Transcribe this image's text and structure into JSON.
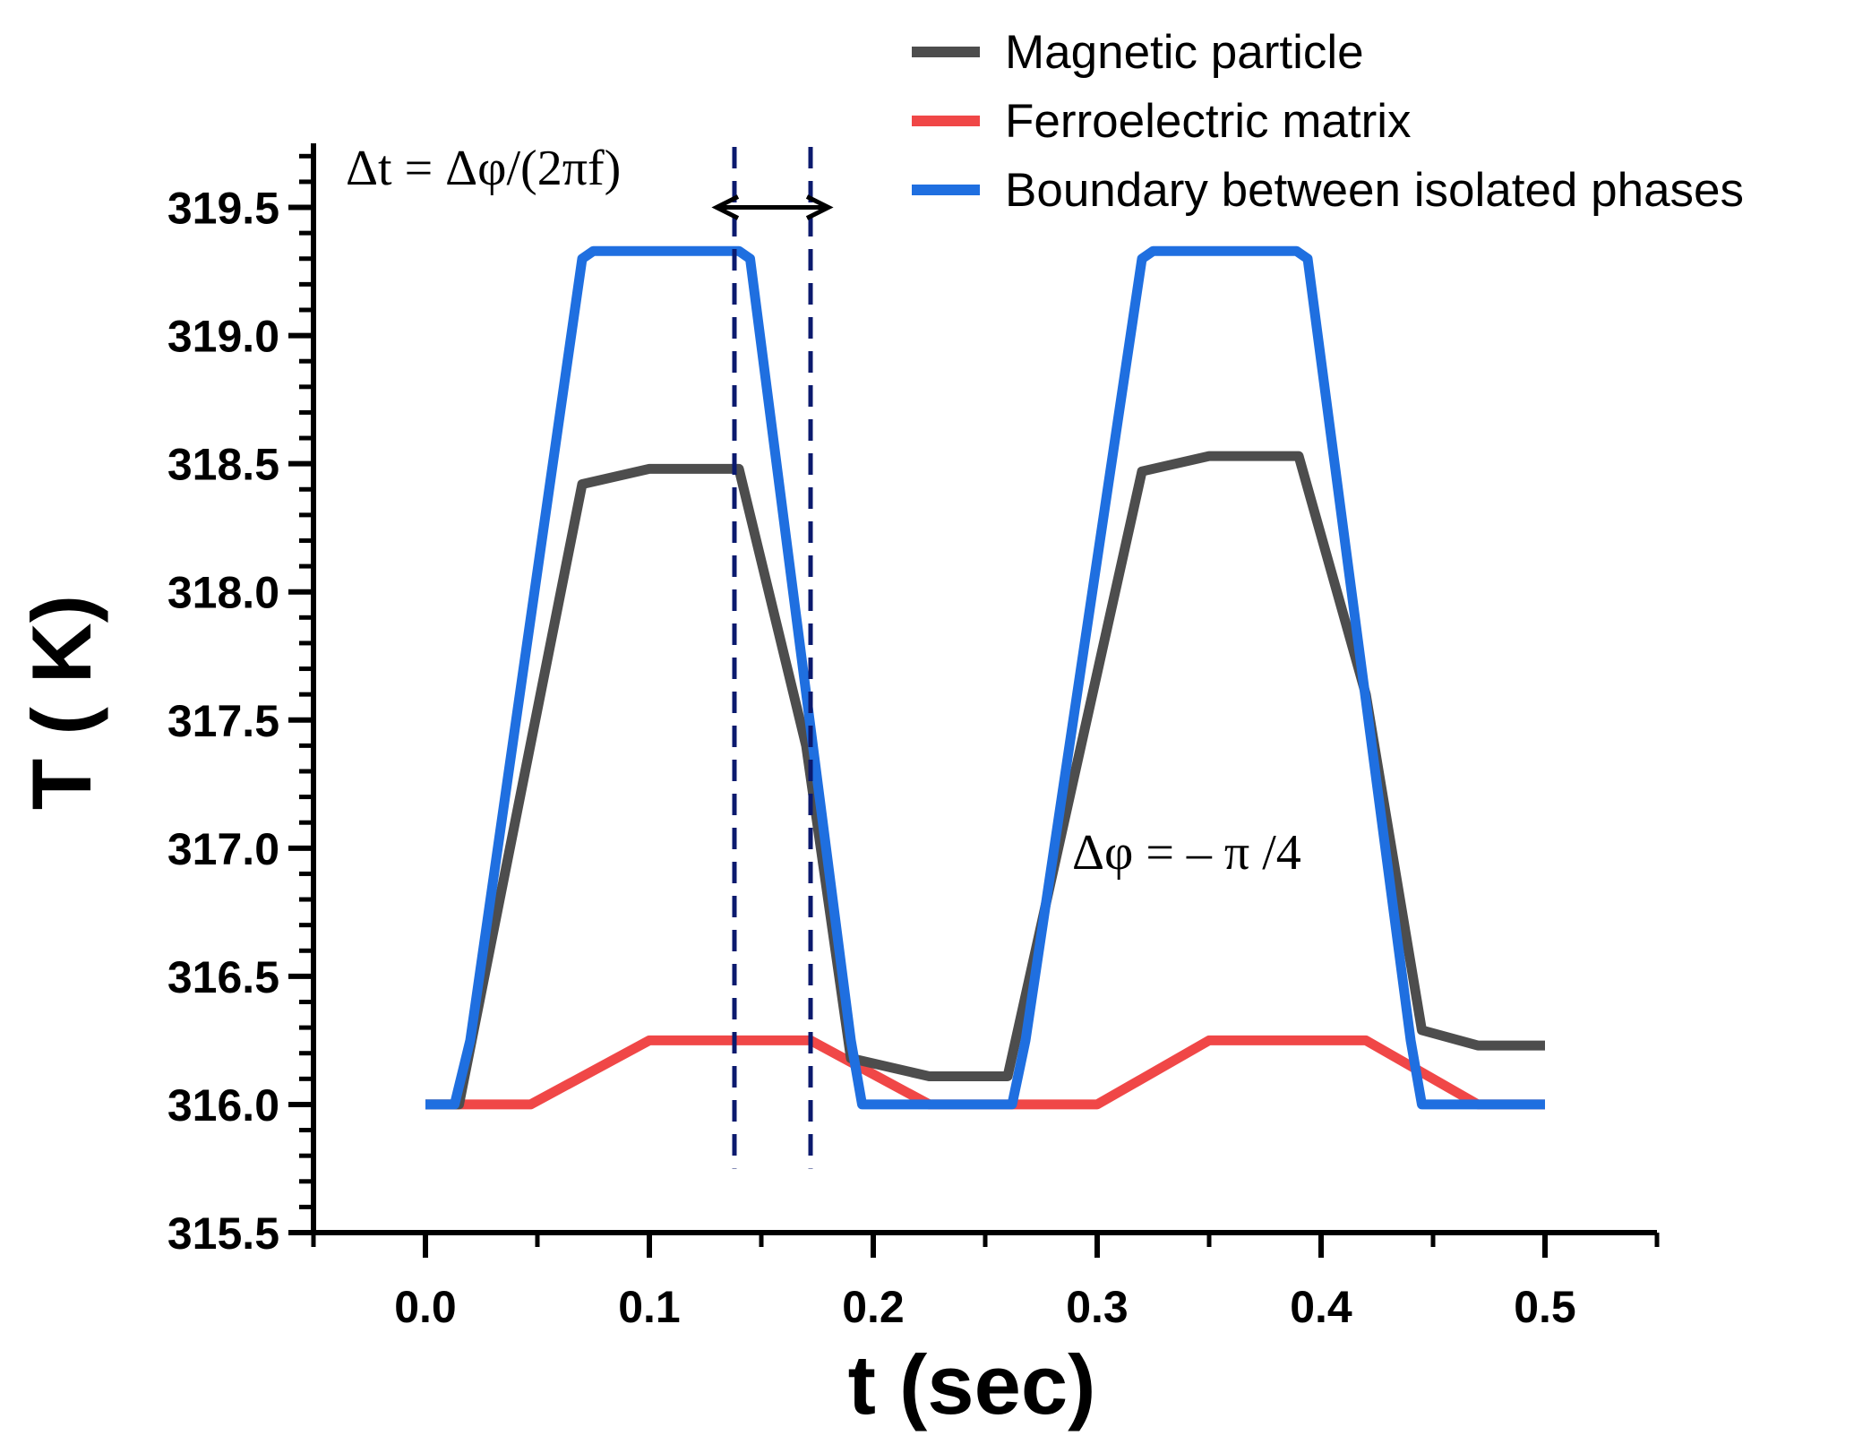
{
  "chart_data": {
    "type": "line",
    "title": "",
    "xlabel": "t (sec)",
    "ylabel": "T ( K)",
    "xlim": [
      -0.05,
      0.55
    ],
    "ylim": [
      315.5,
      319.75
    ],
    "x_major_ticks": [
      0.0,
      0.1,
      0.2,
      0.3,
      0.4,
      0.5
    ],
    "x_tick_labels": [
      "0.0",
      "0.1",
      "0.2",
      "0.3",
      "0.4",
      "0.5"
    ],
    "y_major_ticks": [
      315.5,
      316.0,
      316.5,
      317.0,
      317.5,
      318.0,
      318.5,
      319.0,
      319.5
    ],
    "y_tick_labels": [
      "315.5",
      "316.0",
      "316.5",
      "317.0",
      "317.5",
      "318.0",
      "318.5",
      "319.0",
      "319.5"
    ],
    "series": [
      {
        "name": "Magnetic particle",
        "color": "#4d4d4d",
        "x": [
          0.0,
          0.015,
          0.07,
          0.1,
          0.14,
          0.17,
          0.19,
          0.225,
          0.26,
          0.32,
          0.35,
          0.39,
          0.42,
          0.445,
          0.47,
          0.5
        ],
        "y": [
          316.0,
          316.0,
          318.42,
          318.48,
          318.48,
          317.4,
          316.18,
          316.11,
          316.11,
          318.47,
          318.53,
          318.53,
          317.6,
          316.29,
          316.23,
          316.23
        ]
      },
      {
        "name": "Ferroelectric matrix",
        "color": "#f04747",
        "x": [
          0.0,
          0.047,
          0.1,
          0.172,
          0.225,
          0.3,
          0.35,
          0.42,
          0.47,
          0.5
        ],
        "y": [
          316.0,
          316.0,
          316.25,
          316.25,
          316.0,
          316.0,
          316.25,
          316.25,
          316.0,
          316.0
        ]
      },
      {
        "name": "Boundary between isolated phases",
        "color": "#1f6fe0",
        "x": [
          0.0,
          0.013,
          0.02,
          0.07,
          0.075,
          0.14,
          0.145,
          0.19,
          0.195,
          0.262,
          0.268,
          0.32,
          0.325,
          0.389,
          0.394,
          0.44,
          0.445,
          0.5
        ],
        "y": [
          316.0,
          316.0,
          316.25,
          319.3,
          319.33,
          319.33,
          319.3,
          316.25,
          316.0,
          316.0,
          316.25,
          319.3,
          319.33,
          319.33,
          319.3,
          316.25,
          316.0,
          316.0
        ]
      }
    ],
    "vertical_dashed_lines": [
      0.138,
      0.172
    ],
    "dashed_line_color": "#0b1a6e",
    "arrow": {
      "x_start": 0.13,
      "x_end": 0.18,
      "y": 319.5
    },
    "annotations": [
      {
        "text": "Δt = Δφ/(2πf)"
      },
      {
        "text": "Δφ = – π /4"
      }
    ],
    "legend_position": "top-right",
    "grid": false
  }
}
